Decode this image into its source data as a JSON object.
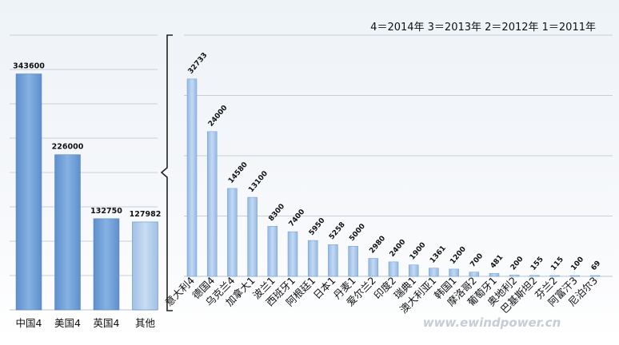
{
  "chart_data": [
    {
      "type": "bar",
      "title": "",
      "categories": [
        "中国4",
        "美国4",
        "英国4",
        "其他"
      ],
      "values": [
        343600,
        226000,
        132750,
        127982
      ],
      "value_labels": [
        "343600",
        "226000",
        "132750",
        "127982"
      ],
      "ylim": [
        0,
        400000
      ],
      "grid": true,
      "colors": {
        "bar": "#6f9fd8",
        "bar_light": "#b4cfee",
        "grid": "#c5d0dc"
      }
    },
    {
      "type": "bar",
      "title": "",
      "categories": [
        "意大利4",
        "德国4",
        "乌克兰4",
        "加拿大1",
        "波兰1",
        "西班牙1",
        "阿根廷1",
        "日本1",
        "丹麦1",
        "爱尔兰2",
        "印度2",
        "瑞典1",
        "澳大利亚1",
        "韩国1",
        "摩洛哥2",
        "葡萄牙1",
        "奥地利2",
        "巴基斯坦2",
        "芬兰2",
        "阿富汗3",
        "尼泊尔3"
      ],
      "values": [
        32733,
        24000,
        14580,
        13100,
        8300,
        7400,
        5950,
        5258,
        5000,
        2980,
        2400,
        1900,
        1361,
        1200,
        700,
        481,
        200,
        155,
        115,
        100,
        69
      ],
      "value_labels": [
        "32733",
        "24000",
        "14580",
        "13100",
        "8300",
        "7400",
        "5950",
        "5258",
        "5000",
        "2980",
        "2400",
        "1900",
        "1361",
        "1200",
        "700",
        "481",
        "200",
        "155",
        "115",
        "100",
        "69"
      ],
      "ylim": [
        0,
        40000
      ],
      "grid": true,
      "colors": {
        "bar": "#a9c7ea",
        "grid": "#c5d0dc"
      }
    }
  ],
  "legend": {
    "text": "4＝2014年  3＝2013年  2＝2012年  1＝2011年"
  },
  "watermark": {
    "text": "www.ewindpower.cn"
  }
}
